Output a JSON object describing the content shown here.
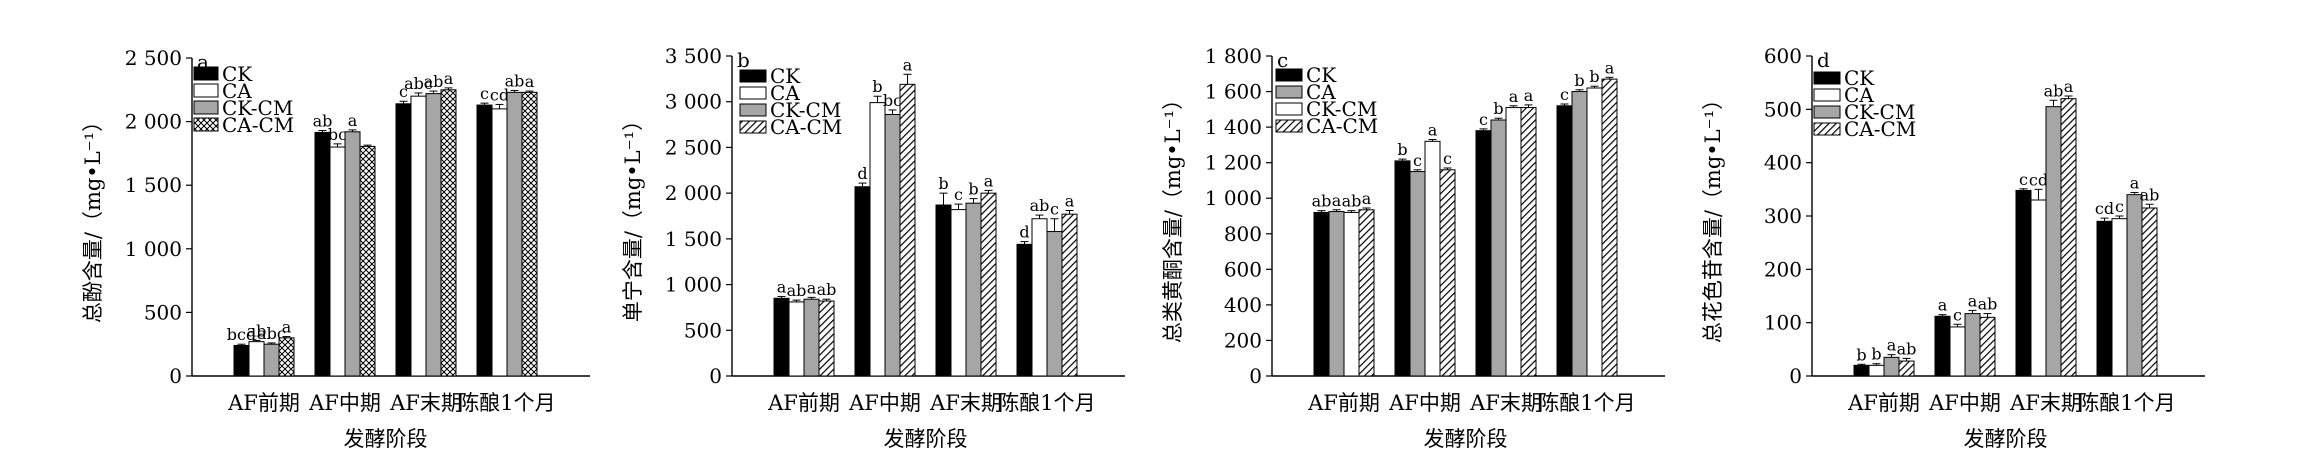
{
  "categories_common": [
    "AF前期",
    "AF中期",
    "AF末期",
    "陈酿1个月"
  ],
  "xlabel_common": "发酵阶段",
  "chart_data": [
    {
      "type": "bar",
      "panel": "a",
      "ylabel": "总酚含量/（mg•L⁻¹）",
      "xlabel": "发酵阶段",
      "categories": [
        "AF前期",
        "AF中期",
        "AF末期",
        "陈酿1个月"
      ],
      "ylim": [
        0,
        2500
      ],
      "yticks": [
        0,
        500,
        1000,
        1500,
        2000,
        2500
      ],
      "ytick_labels": [
        "0",
        "500",
        "1 000",
        "1 500",
        "2 000",
        "2 500"
      ],
      "series": [
        {
          "name": "CK",
          "values": [
            240,
            1915,
            2140,
            2130
          ],
          "errors": [
            10,
            15,
            20,
            15
          ],
          "letters": [
            "bcd",
            "ab",
            "c",
            "c"
          ]
        },
        {
          "name": "CA",
          "values": [
            270,
            1800,
            2200,
            2100
          ],
          "errors": [
            10,
            25,
            25,
            35
          ],
          "letters": [
            "ab",
            "bc",
            "abc",
            "cd"
          ]
        },
        {
          "name": "CK-CM",
          "values": [
            250,
            1920,
            2220,
            2230
          ],
          "errors": [
            10,
            15,
            20,
            15
          ],
          "letters": [
            "abc",
            "a",
            "ab",
            "ab"
          ]
        },
        {
          "name": "CA-CM",
          "values": [
            300,
            1805,
            2250,
            2230
          ],
          "errors": [
            10,
            10,
            15,
            10
          ],
          "letters": [
            "a",
            "",
            "a",
            "a"
          ]
        }
      ],
      "legend": [
        "CK",
        "CA",
        "CK-CM",
        "CA-CM"
      ]
    },
    {
      "type": "bar",
      "panel": "b",
      "ylabel": "单宁含量/（mg•L⁻¹）",
      "xlabel": "发酵阶段",
      "categories": [
        "AF前期",
        "AF中期",
        "AF末期",
        "陈酿1个月"
      ],
      "ylim": [
        0,
        3500
      ],
      "yticks": [
        0,
        500,
        1000,
        1500,
        2000,
        2500,
        3000,
        3500
      ],
      "ytick_labels": [
        "0",
        "500",
        "1 000",
        "1 500",
        "2 000",
        "2 500",
        "3 000",
        "3 500"
      ],
      "series": [
        {
          "name": "CK",
          "values": [
            850,
            2070,
            1870,
            1440
          ],
          "errors": [
            20,
            40,
            130,
            30
          ],
          "letters": [
            "a",
            "d",
            "b",
            "d"
          ]
        },
        {
          "name": "CA",
          "values": [
            810,
            2990,
            1820,
            1720
          ],
          "errors": [
            20,
            70,
            60,
            40
          ],
          "letters": [
            "ab",
            "b",
            "c",
            "ab"
          ]
        },
        {
          "name": "CK-CM",
          "values": [
            840,
            2860,
            1890,
            1580
          ],
          "errors": [
            20,
            50,
            50,
            140
          ],
          "letters": [
            "a",
            "bc",
            "b",
            "c"
          ]
        },
        {
          "name": "CA-CM",
          "values": [
            820,
            3190,
            2000,
            1770
          ],
          "errors": [
            20,
            110,
            30,
            40
          ],
          "letters": [
            "ab",
            "a",
            "a",
            "a"
          ]
        }
      ],
      "legend": [
        "CK",
        "CA",
        "CK-CM",
        "CA-CM"
      ]
    },
    {
      "type": "bar",
      "panel": "c",
      "ylabel": "总类黄酮含量/（mg•L⁻¹）",
      "xlabel": "发酵阶段",
      "categories": [
        "AF前期",
        "AF中期",
        "AF末期",
        "陈酿1个月"
      ],
      "ylim": [
        0,
        1800
      ],
      "yticks": [
        0,
        200,
        400,
        600,
        800,
        1000,
        1200,
        1400,
        1600,
        1800
      ],
      "ytick_labels": [
        "0",
        "200",
        "400",
        "600",
        "800",
        "1 000",
        "1 200",
        "1 400",
        "1 600",
        "1 800"
      ],
      "series": [
        {
          "name": "CK",
          "values": [
            920,
            1210,
            1380,
            1520
          ],
          "errors": [
            10,
            10,
            10,
            10
          ],
          "letters": [
            "ab",
            "b",
            "c",
            "c"
          ]
        },
        {
          "name": "CA",
          "values": [
            925,
            1150,
            1440,
            1600
          ],
          "errors": [
            10,
            10,
            10,
            10
          ],
          "letters": [
            "a",
            "c",
            "b",
            "b"
          ]
        },
        {
          "name": "CK-CM",
          "values": [
            920,
            1320,
            1510,
            1620
          ],
          "errors": [
            10,
            10,
            10,
            10
          ],
          "letters": [
            "ab",
            "a",
            "a",
            "b"
          ]
        },
        {
          "name": "CA-CM",
          "values": [
            935,
            1160,
            1510,
            1670
          ],
          "errors": [
            10,
            10,
            15,
            10
          ],
          "letters": [
            "a",
            "c",
            "a",
            "a"
          ]
        }
      ],
      "legend": [
        "CK",
        "CA",
        "CK-CM",
        "CA-CM"
      ]
    },
    {
      "type": "bar",
      "panel": "d",
      "ylabel": "总花色苷含量/（mg•L⁻¹）",
      "xlabel": "发酵阶段",
      "categories": [
        "AF前期",
        "AF中期",
        "AF末期",
        "陈酿1个月"
      ],
      "ylim": [
        0,
        600
      ],
      "yticks": [
        0,
        100,
        200,
        300,
        400,
        500,
        600
      ],
      "ytick_labels": [
        "0",
        "100",
        "200",
        "300",
        "400",
        "500",
        "600"
      ],
      "series": [
        {
          "name": "CK",
          "values": [
            20,
            112,
            348,
            290
          ],
          "errors": [
            2,
            3,
            3,
            6
          ],
          "letters": [
            "b",
            "a",
            "c",
            "cd"
          ]
        },
        {
          "name": "CA",
          "values": [
            20,
            92,
            330,
            295
          ],
          "errors": [
            3,
            5,
            20,
            5
          ],
          "letters": [
            "b",
            "c",
            "cd",
            "c"
          ]
        },
        {
          "name": "CK-CM",
          "values": [
            35,
            117,
            505,
            340
          ],
          "errors": [
            5,
            6,
            12,
            4
          ],
          "letters": [
            "a",
            "a",
            "ab",
            "a"
          ]
        },
        {
          "name": "CA-CM",
          "values": [
            28,
            110,
            520,
            315
          ],
          "errors": [
            5,
            7,
            5,
            7
          ],
          "letters": [
            "ab",
            "ab",
            "a",
            "ab"
          ]
        }
      ],
      "legend": [
        "CK",
        "CA",
        "CK-CM",
        "CA-CM"
      ]
    }
  ]
}
